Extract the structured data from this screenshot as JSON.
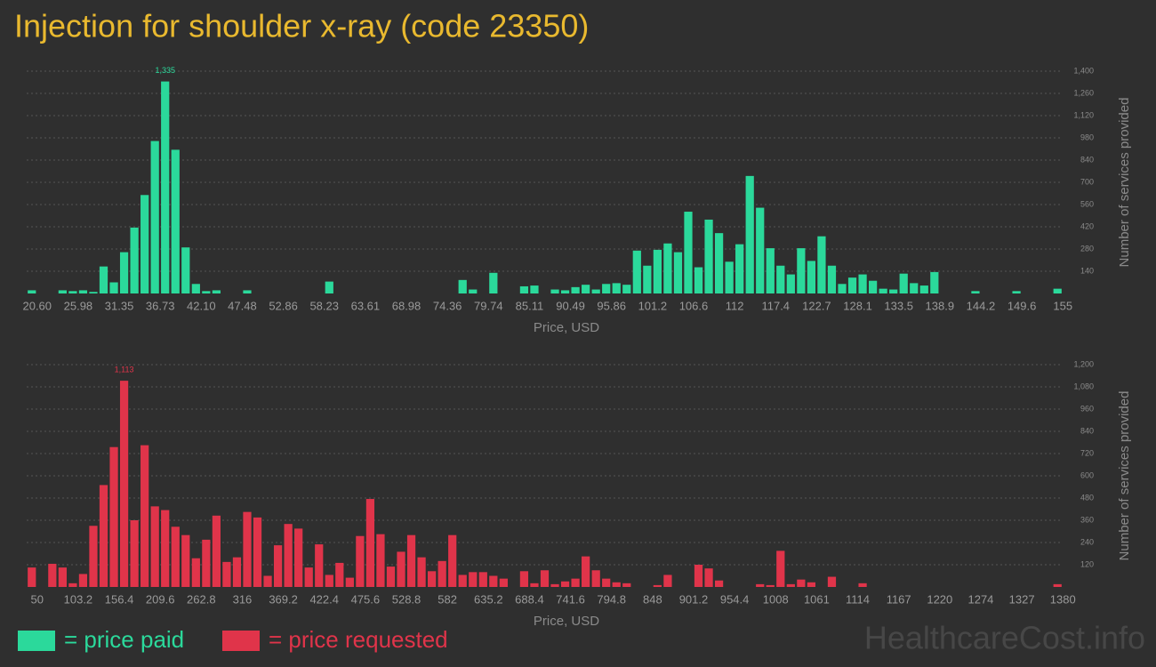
{
  "title": "Injection for shoulder x-ray (code 23350)",
  "watermark": "HealthcareCost.info",
  "chart_data": [
    {
      "type": "bar",
      "xlabel": "Price, USD",
      "ylabel": "Number of services provided",
      "grid": true,
      "categories": [
        "20.60",
        null,
        null,
        null,
        "25.98",
        null,
        null,
        null,
        "31.35",
        null,
        null,
        null,
        "36.73",
        null,
        null,
        null,
        "42.10",
        null,
        null,
        null,
        "47.48",
        null,
        null,
        null,
        "52.86",
        null,
        null,
        null,
        "58.23",
        null,
        null,
        null,
        "63.61",
        null,
        null,
        null,
        "68.98",
        null,
        null,
        null,
        "74.36",
        null,
        null,
        null,
        "79.74",
        null,
        null,
        null,
        "85.11",
        null,
        null,
        null,
        "90.49",
        null,
        null,
        null,
        "95.86",
        null,
        null,
        null,
        "101.2",
        null,
        null,
        null,
        "106.6",
        null,
        null,
        null,
        "112",
        null,
        null,
        null,
        "117.4",
        null,
        null,
        null,
        "122.7",
        null,
        null,
        null,
        "128.1",
        null,
        null,
        null,
        "133.5",
        null,
        null,
        null,
        "138.9",
        null,
        null,
        null,
        "144.2",
        null,
        null,
        null,
        "149.6",
        null,
        null,
        null,
        "155"
      ],
      "series": [
        {
          "name": "= price paid",
          "color": "#2bd99b",
          "values": [
            20,
            0,
            0,
            20,
            15,
            20,
            10,
            170,
            70,
            260,
            415,
            620,
            960,
            1335,
            905,
            290,
            60,
            15,
            20,
            0,
            0,
            20,
            0,
            0,
            0,
            0,
            0,
            0,
            0,
            75,
            0,
            0,
            0,
            0,
            0,
            0,
            0,
            0,
            0,
            0,
            0,
            0,
            85,
            25,
            0,
            130,
            0,
            0,
            45,
            50,
            0,
            25,
            20,
            40,
            55,
            25,
            60,
            65,
            55,
            270,
            175,
            275,
            315,
            260,
            515,
            165,
            465,
            380,
            200,
            310,
            740,
            540,
            285,
            175,
            120,
            285,
            205,
            360,
            175,
            60,
            100,
            120,
            80,
            30,
            25,
            125,
            65,
            50,
            135,
            0,
            0,
            0,
            15,
            0,
            0,
            0,
            15,
            0,
            0,
            0,
            30
          ],
          "value_labels": [
            null,
            null,
            null,
            null,
            null,
            null,
            null,
            null,
            null,
            null,
            null,
            null,
            null,
            "1,335",
            null,
            null,
            null,
            null,
            null,
            null,
            null,
            null,
            null,
            null,
            null,
            null,
            null,
            null,
            null,
            null,
            null,
            null,
            null,
            null,
            null,
            null,
            null,
            null,
            null,
            null,
            null,
            null,
            null,
            null,
            null,
            null,
            null,
            null,
            null,
            null,
            null,
            null,
            null,
            null,
            null,
            null,
            null,
            null,
            null,
            null,
            null,
            null,
            null,
            null,
            null,
            null,
            null,
            null,
            null,
            null,
            null,
            null,
            null,
            null,
            null,
            null,
            null,
            null,
            null,
            null,
            null,
            null,
            null,
            null,
            null,
            null,
            null,
            null,
            null,
            null,
            null,
            null,
            null,
            null,
            null,
            null,
            null,
            null,
            null,
            null,
            null
          ]
        }
      ],
      "ylim": [
        0,
        1400
      ],
      "yticks": [
        140,
        280,
        420,
        560,
        700,
        840,
        980,
        {
          "value": 1120,
          "label": "1,120"
        },
        {
          "value": 1260,
          "label": "1,260"
        },
        {
          "value": 1400,
          "label": "1,400"
        }
      ]
    },
    {
      "type": "bar",
      "xlabel": "Price, USD",
      "ylabel": "Number of services provided",
      "grid": true,
      "categories": [
        "50",
        null,
        null,
        null,
        "103.2",
        null,
        null,
        null,
        "156.4",
        null,
        null,
        null,
        "209.6",
        null,
        null,
        null,
        "262.8",
        null,
        null,
        null,
        "316",
        null,
        null,
        null,
        "369.2",
        null,
        null,
        null,
        "422.4",
        null,
        null,
        null,
        "475.6",
        null,
        null,
        null,
        "528.8",
        null,
        null,
        null,
        "582",
        null,
        null,
        null,
        "635.2",
        null,
        null,
        null,
        "688.4",
        null,
        null,
        null,
        "741.6",
        null,
        null,
        null,
        "794.8",
        null,
        null,
        null,
        "848",
        null,
        null,
        null,
        "901.2",
        null,
        null,
        null,
        "954.4",
        null,
        null,
        null,
        "1008",
        null,
        null,
        null,
        "1061",
        null,
        null,
        null,
        "1114",
        null,
        null,
        null,
        "1167",
        null,
        null,
        null,
        "1220",
        null,
        null,
        null,
        "1274",
        null,
        null,
        null,
        "1327",
        null,
        null,
        null,
        "1380"
      ],
      "series": [
        {
          "name": "= price requested",
          "color": "#e0344a",
          "values": [
            105,
            0,
            125,
            105,
            20,
            70,
            330,
            550,
            755,
            1113,
            360,
            765,
            435,
            415,
            325,
            280,
            155,
            255,
            385,
            135,
            160,
            405,
            375,
            60,
            225,
            340,
            315,
            105,
            230,
            65,
            130,
            50,
            275,
            475,
            285,
            110,
            190,
            280,
            160,
            85,
            140,
            280,
            65,
            80,
            80,
            60,
            45,
            0,
            85,
            20,
            90,
            15,
            30,
            45,
            165,
            90,
            45,
            25,
            20,
            0,
            0,
            10,
            65,
            0,
            0,
            120,
            100,
            35,
            0,
            0,
            0,
            15,
            10,
            195,
            15,
            40,
            25,
            0,
            55,
            0,
            0,
            20,
            0,
            0,
            0,
            0,
            0,
            0,
            0,
            0,
            0,
            0,
            0,
            0,
            0,
            0,
            0,
            0,
            0,
            0,
            15
          ],
          "value_labels": [
            null,
            null,
            null,
            null,
            null,
            null,
            null,
            null,
            null,
            "1,113",
            null,
            null,
            null,
            null,
            null,
            null,
            null,
            null,
            null,
            null,
            null,
            null,
            null,
            null,
            null,
            null,
            null,
            null,
            null,
            null,
            null,
            null,
            null,
            null,
            null,
            null,
            null,
            null,
            null,
            null,
            null,
            null,
            null,
            null,
            null,
            null,
            null,
            null,
            null,
            null,
            null,
            null,
            null,
            null,
            null,
            null,
            null,
            null,
            null,
            null,
            null,
            null,
            null,
            null,
            null,
            null,
            null,
            null,
            null,
            null,
            null,
            null,
            null,
            null,
            null,
            null,
            null,
            null,
            null,
            null,
            null,
            null,
            null,
            null,
            null,
            null,
            null,
            null,
            null,
            null,
            null,
            null,
            null,
            null,
            null,
            null,
            null,
            null,
            null,
            null,
            null
          ]
        }
      ],
      "ylim": [
        0,
        1200
      ],
      "yticks": [
        120,
        240,
        360,
        480,
        600,
        720,
        840,
        960,
        {
          "value": 1080,
          "label": "1,080"
        },
        {
          "value": 1200,
          "label": "1,200"
        }
      ]
    }
  ]
}
